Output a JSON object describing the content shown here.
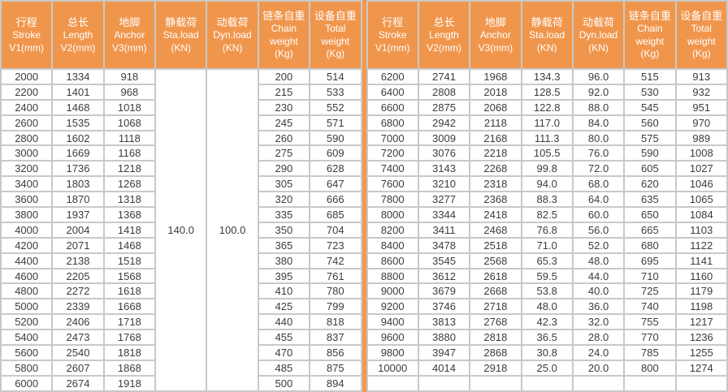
{
  "colors": {
    "header_bg": "#F0964C",
    "header_text": "#FFFFFF",
    "divider": "#F2994A",
    "grid": "#C9C9C9",
    "cell_bg": "#FFFFFF",
    "text": "#3C3C3C"
  },
  "tables": [
    {
      "name": "left-spec-table",
      "columns": [
        {
          "lines": [
            "行程",
            "Stroke",
            "V1(mm)"
          ]
        },
        {
          "lines": [
            "总长",
            "Length",
            "V2(mm)"
          ]
        },
        {
          "lines": [
            "地脚",
            "Anchor",
            "V3(mm)"
          ]
        },
        {
          "lines": [
            "静载荷",
            "Sta.load",
            "(KN)"
          ]
        },
        {
          "lines": [
            "动载荷",
            "Dyn.load",
            "(KN)"
          ]
        },
        {
          "lines": [
            "链条自重",
            "Chain",
            "weight",
            "(Kg)"
          ]
        },
        {
          "lines": [
            "设备自重",
            "Total",
            "weight",
            "(Kg)"
          ]
        }
      ],
      "merges": [
        {
          "after_col": 3,
          "value": "140.0"
        },
        {
          "after_col": 3,
          "value": "100.0"
        }
      ],
      "rows": [
        [
          "2000",
          "1334",
          "918",
          "200",
          "514"
        ],
        [
          "2200",
          "1401",
          "968",
          "215",
          "533"
        ],
        [
          "2400",
          "1468",
          "1018",
          "230",
          "552"
        ],
        [
          "2600",
          "1535",
          "1068",
          "245",
          "571"
        ],
        [
          "2800",
          "1602",
          "1118",
          "260",
          "590"
        ],
        [
          "3000",
          "1669",
          "1168",
          "275",
          "609"
        ],
        [
          "3200",
          "1736",
          "1218",
          "290",
          "628"
        ],
        [
          "3400",
          "1803",
          "1268",
          "305",
          "647"
        ],
        [
          "3600",
          "1870",
          "1318",
          "320",
          "666"
        ],
        [
          "3800",
          "1937",
          "1368",
          "335",
          "685"
        ],
        [
          "4000",
          "2004",
          "1418",
          "350",
          "704"
        ],
        [
          "4200",
          "2071",
          "1468",
          "365",
          "723"
        ],
        [
          "4400",
          "2138",
          "1518",
          "380",
          "742"
        ],
        [
          "4600",
          "2205",
          "1568",
          "395",
          "761"
        ],
        [
          "4800",
          "2272",
          "1618",
          "410",
          "780"
        ],
        [
          "5000",
          "2339",
          "1668",
          "425",
          "799"
        ],
        [
          "5200",
          "2406",
          "1718",
          "440",
          "818"
        ],
        [
          "5400",
          "2473",
          "1768",
          "455",
          "837"
        ],
        [
          "5600",
          "2540",
          "1818",
          "470",
          "856"
        ],
        [
          "5800",
          "2607",
          "1868",
          "485",
          "875"
        ],
        [
          "6000",
          "2674",
          "1918",
          "500",
          "894"
        ]
      ]
    },
    {
      "name": "right-spec-table",
      "columns": [
        {
          "lines": [
            "行程",
            "Stroke",
            "V1(mm)"
          ]
        },
        {
          "lines": [
            "总长",
            "Length",
            "V2(mm)"
          ]
        },
        {
          "lines": [
            "地脚",
            "Anchor",
            "V3(mm)"
          ]
        },
        {
          "lines": [
            "静载荷",
            "Sta.load",
            "(KN)"
          ]
        },
        {
          "lines": [
            "动载荷",
            "Dyn.load",
            "(KN)"
          ]
        },
        {
          "lines": [
            "链条自重",
            "Chain",
            "weight",
            "(Kg)"
          ]
        },
        {
          "lines": [
            "设备自重",
            "Total",
            "weight",
            "(Kg)"
          ]
        }
      ],
      "merges": [],
      "rows": [
        [
          "6200",
          "2741",
          "1968",
          "134.3",
          "96.0",
          "515",
          "913"
        ],
        [
          "6400",
          "2808",
          "2018",
          "128.5",
          "92.0",
          "530",
          "932"
        ],
        [
          "6600",
          "2875",
          "2068",
          "122.8",
          "88.0",
          "545",
          "951"
        ],
        [
          "6800",
          "2942",
          "2118",
          "117.0",
          "84.0",
          "560",
          "970"
        ],
        [
          "7000",
          "3009",
          "2168",
          "111.3",
          "80.0",
          "575",
          "989"
        ],
        [
          "7200",
          "3076",
          "2218",
          "105.5",
          "76.0",
          "590",
          "1008"
        ],
        [
          "7400",
          "3143",
          "2268",
          "99.8",
          "72.0",
          "605",
          "1027"
        ],
        [
          "7600",
          "3210",
          "2318",
          "94.0",
          "68.0",
          "620",
          "1046"
        ],
        [
          "7800",
          "3277",
          "2368",
          "88.3",
          "64.0",
          "635",
          "1065"
        ],
        [
          "8000",
          "3344",
          "2418",
          "82.5",
          "60.0",
          "650",
          "1084"
        ],
        [
          "8200",
          "3411",
          "2468",
          "76.8",
          "56.0",
          "665",
          "1103"
        ],
        [
          "8400",
          "3478",
          "2518",
          "71.0",
          "52.0",
          "680",
          "1122"
        ],
        [
          "8600",
          "3545",
          "2568",
          "65.3",
          "48.0",
          "695",
          "1141"
        ],
        [
          "8800",
          "3612",
          "2618",
          "59.5",
          "44.0",
          "710",
          "1160"
        ],
        [
          "9000",
          "3679",
          "2668",
          "53.8",
          "40.0",
          "725",
          "1179"
        ],
        [
          "9200",
          "3746",
          "2718",
          "48.0",
          "36.0",
          "740",
          "1198"
        ],
        [
          "9400",
          "3813",
          "2768",
          "42.3",
          "32.0",
          "755",
          "1217"
        ],
        [
          "9600",
          "3880",
          "2818",
          "36.5",
          "28.0",
          "770",
          "1236"
        ],
        [
          "9800",
          "3947",
          "2868",
          "30.8",
          "24.0",
          "785",
          "1255"
        ],
        [
          "10000",
          "4014",
          "2918",
          "25.0",
          "20.0",
          "800",
          "1274"
        ],
        [
          "",
          "",
          "",
          "",
          "",
          "",
          ""
        ]
      ]
    }
  ]
}
